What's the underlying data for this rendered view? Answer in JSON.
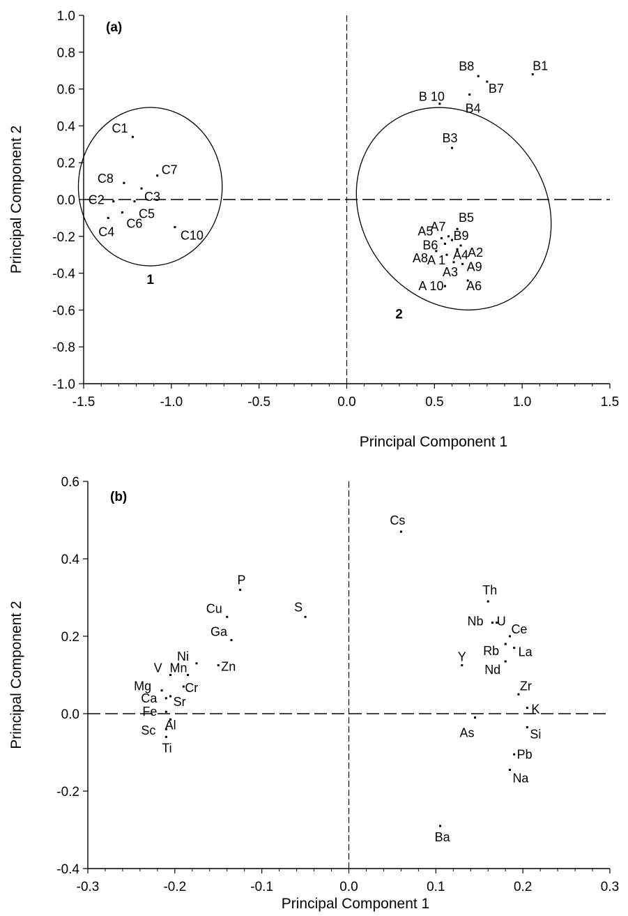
{
  "chart_data": [
    {
      "type": "scatter",
      "panel_label": "(a)",
      "xlabel": "Principal Component 1",
      "ylabel": "Principal Component 2",
      "xlim": [
        -1.5,
        1.5
      ],
      "ylim": [
        -1.0,
        1.0
      ],
      "x_ticks": [
        -1.5,
        -1.0,
        -0.5,
        0.0,
        0.5,
        1.0,
        1.5
      ],
      "x_tick_labels": [
        "-1.5",
        "-1.0",
        "-0.5",
        "0.0",
        "0.5",
        "1.0",
        "1.5"
      ],
      "y_ticks": [
        -1.0,
        -0.8,
        -0.6,
        -0.4,
        -0.2,
        0.0,
        0.2,
        0.4,
        0.6,
        0.8,
        1.0
      ],
      "y_tick_labels": [
        "-1.0",
        "-0.8",
        "-0.6",
        "-0.4",
        "-0.2",
        "0.0",
        "0.2",
        "0.4",
        "0.6",
        "0.8",
        "1.0"
      ],
      "reference_lines": {
        "x": 0,
        "y": 0,
        "style": "dashed"
      },
      "grid": false,
      "clusters": [
        {
          "label": "1",
          "center": [
            -1.12,
            0.07
          ],
          "radius": [
            0.41,
            0.43
          ]
        },
        {
          "label": "2",
          "center": [
            0.61,
            -0.05
          ],
          "radius": [
            0.52,
            0.58
          ],
          "rotation_deg": -38
        }
      ],
      "points": [
        {
          "label": "C1",
          "x": -1.22,
          "y": 0.34
        },
        {
          "label": "C7",
          "x": -1.08,
          "y": 0.13
        },
        {
          "label": "C8",
          "x": -1.27,
          "y": 0.09
        },
        {
          "label": "C3",
          "x": -1.17,
          "y": 0.06
        },
        {
          "label": "C2",
          "x": -1.33,
          "y": -0.01
        },
        {
          "label": "C5",
          "x": -1.21,
          "y": -0.01
        },
        {
          "label": "C4",
          "x": -1.36,
          "y": -0.1
        },
        {
          "label": "C6",
          "x": -1.28,
          "y": -0.07
        },
        {
          "label": "C10",
          "x": -0.98,
          "y": -0.15
        },
        {
          "label": "B1",
          "x": 1.06,
          "y": 0.68
        },
        {
          "label": "B8",
          "x": 0.75,
          "y": 0.67
        },
        {
          "label": "B7",
          "x": 0.8,
          "y": 0.64
        },
        {
          "label": "B4",
          "x": 0.7,
          "y": 0.57
        },
        {
          "label": "B 10",
          "x": 0.53,
          "y": 0.52
        },
        {
          "label": "B3",
          "x": 0.6,
          "y": 0.28
        },
        {
          "label": "B5",
          "x": 0.63,
          "y": -0.16
        },
        {
          "label": "A7",
          "x": 0.58,
          "y": -0.2
        },
        {
          "label": "A5",
          "x": 0.54,
          "y": -0.21
        },
        {
          "label": "B9",
          "x": 0.6,
          "y": -0.22
        },
        {
          "label": "A2",
          "x": 0.65,
          "y": -0.25
        },
        {
          "label": "B6",
          "x": 0.56,
          "y": -0.24
        },
        {
          "label": "A4",
          "x": 0.63,
          "y": -0.27
        },
        {
          "label": "A8",
          "x": 0.51,
          "y": -0.28
        },
        {
          "label": "A 1",
          "x": 0.57,
          "y": -0.3
        },
        {
          "label": "A9",
          "x": 0.66,
          "y": -0.35
        },
        {
          "label": "A3",
          "x": 0.61,
          "y": -0.34
        },
        {
          "label": "A6",
          "x": 0.69,
          "y": -0.44
        },
        {
          "label": "A 10",
          "x": 0.56,
          "y": -0.47
        }
      ]
    },
    {
      "type": "scatter",
      "panel_label": "(b)",
      "xlabel": "Principal Component 1",
      "ylabel": "Principal Component 2",
      "xlim": [
        -0.3,
        0.3
      ],
      "ylim": [
        -0.4,
        0.6
      ],
      "x_ticks": [
        -0.3,
        -0.2,
        -0.1,
        0.0,
        0.1,
        0.2,
        0.3
      ],
      "x_tick_labels": [
        "-0.3",
        "-0.2",
        "-0.1",
        "0.0",
        "0.1",
        "0.2",
        "0.3"
      ],
      "y_ticks": [
        -0.4,
        -0.2,
        0.0,
        0.2,
        0.4,
        0.6
      ],
      "y_tick_labels": [
        "-0.4",
        "-0.2",
        "0.0",
        "0.2",
        "0.4",
        "0.6"
      ],
      "reference_lines": {
        "x": 0,
        "y": 0,
        "style": "dashed"
      },
      "grid": false,
      "points": [
        {
          "label": "Cs",
          "x": 0.06,
          "y": 0.47
        },
        {
          "label": "P",
          "x": -0.125,
          "y": 0.32
        },
        {
          "label": "S",
          "x": -0.05,
          "y": 0.25
        },
        {
          "label": "Cu",
          "x": -0.14,
          "y": 0.25
        },
        {
          "label": "Ga",
          "x": -0.135,
          "y": 0.19
        },
        {
          "label": "Ni",
          "x": -0.175,
          "y": 0.13
        },
        {
          "label": "Zn",
          "x": -0.15,
          "y": 0.125
        },
        {
          "label": "V",
          "x": -0.205,
          "y": 0.1
        },
        {
          "label": "Mn",
          "x": -0.185,
          "y": 0.1
        },
        {
          "label": "Mg",
          "x": -0.215,
          "y": 0.06
        },
        {
          "label": "Cr",
          "x": -0.19,
          "y": 0.07
        },
        {
          "label": "Ca",
          "x": -0.21,
          "y": 0.04
        },
        {
          "label": "Sr",
          "x": -0.205,
          "y": 0.045
        },
        {
          "label": "Fe",
          "x": -0.21,
          "y": 0.005
        },
        {
          "label": "Al",
          "x": -0.205,
          "y": -0.015
        },
        {
          "label": "Sc",
          "x": -0.21,
          "y": -0.04
        },
        {
          "label": "Ti",
          "x": -0.21,
          "y": -0.06
        },
        {
          "label": "Th",
          "x": 0.16,
          "y": 0.29
        },
        {
          "label": "Nb",
          "x": 0.165,
          "y": 0.235
        },
        {
          "label": "U",
          "x": 0.17,
          "y": 0.235
        },
        {
          "label": "Ce",
          "x": 0.185,
          "y": 0.2
        },
        {
          "label": "Rb",
          "x": 0.18,
          "y": 0.18
        },
        {
          "label": "La",
          "x": 0.19,
          "y": 0.17
        },
        {
          "label": "Y",
          "x": 0.13,
          "y": 0.125
        },
        {
          "label": "Nd",
          "x": 0.18,
          "y": 0.135
        },
        {
          "label": "Zr",
          "x": 0.195,
          "y": 0.05
        },
        {
          "label": "K",
          "x": 0.205,
          "y": 0.015
        },
        {
          "label": "As",
          "x": 0.145,
          "y": -0.01
        },
        {
          "label": "Si",
          "x": 0.205,
          "y": -0.035
        },
        {
          "label": "Pb",
          "x": 0.19,
          "y": -0.105
        },
        {
          "label": "Na",
          "x": 0.185,
          "y": -0.145
        },
        {
          "label": "Ba",
          "x": 0.105,
          "y": -0.29
        }
      ]
    }
  ]
}
